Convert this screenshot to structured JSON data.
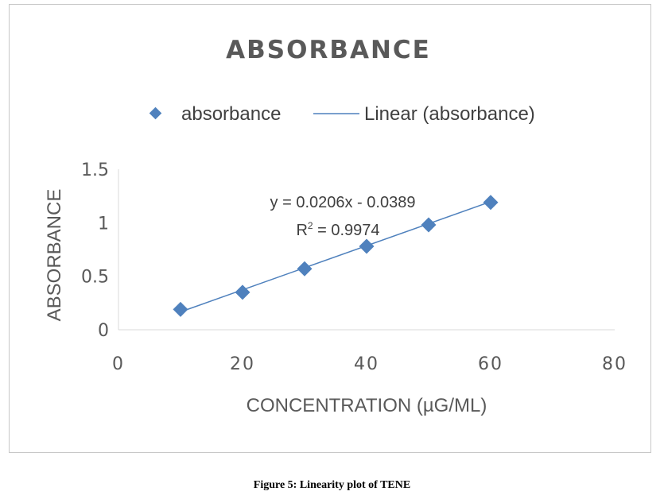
{
  "chart_data": {
    "type": "scatter",
    "title": "ABSORBANCE",
    "xlabel": "CONCENTRATION  (µG/ML)",
    "ylabel": "ABSORBANCE",
    "xlim": [
      0,
      80
    ],
    "ylim": [
      0,
      1.5
    ],
    "x_ticks": [
      "0",
      "20",
      "40",
      "60",
      "80"
    ],
    "y_ticks": [
      "0",
      "0.5",
      "1",
      "1.5"
    ],
    "x_tick_values": [
      0,
      20,
      40,
      60,
      80
    ],
    "y_tick_values": [
      0,
      0.5,
      1,
      1.5
    ],
    "grid": false,
    "legend_position": "top",
    "series": [
      {
        "name": "absorbance",
        "marker": "diamond",
        "color": "#4f81bd",
        "x": [
          10,
          20,
          30,
          40,
          50,
          60
        ],
        "y": [
          0.19,
          0.35,
          0.57,
          0.78,
          0.98,
          1.19
        ]
      }
    ],
    "trendline": {
      "name": "Linear (absorbance)",
      "slope": 0.0206,
      "intercept": -0.0389,
      "x_range": [
        10,
        60
      ],
      "color": "#4f81bd",
      "equation": "y = 0.0206x - 0.0389",
      "r2_prefix": "R",
      "r2_sup": "2",
      "r2_suffix": " = 0.9974"
    }
  },
  "caption": "Figure 5: Linearity plot of TENE"
}
